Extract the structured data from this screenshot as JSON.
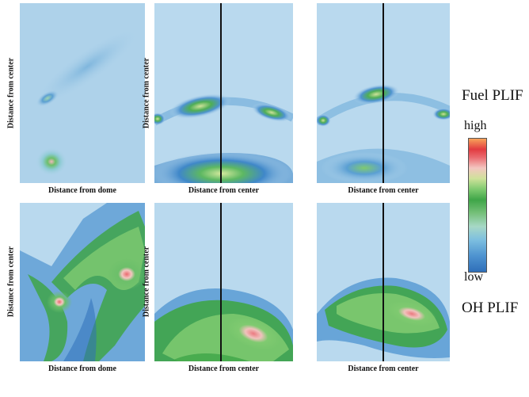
{
  "rows": [
    {
      "title": "Fuel PLIF",
      "panels": [
        {
          "xlabel": "Distance from dome",
          "ylabel": "Distance from center",
          "center_line": false
        },
        {
          "xlabel": "Distance from center",
          "ylabel": "Distance from center",
          "center_line": true
        },
        {
          "xlabel": "Distance from center",
          "ylabel": "",
          "center_line": true
        }
      ]
    },
    {
      "title": "OH PLIF",
      "panels": [
        {
          "xlabel": "Distance from dome",
          "ylabel": "Distance from center",
          "center_line": false
        },
        {
          "xlabel": "Distance from center",
          "ylabel": "Distance from center",
          "center_line": true
        },
        {
          "xlabel": "Distance from center",
          "ylabel": "",
          "center_line": true
        }
      ]
    }
  ],
  "colorbar": {
    "high_label": "high",
    "low_label": "low",
    "colors": [
      "#2f6fb9",
      "#7dbfe0",
      "#3fa548",
      "#cfe29a",
      "#e23b40",
      "#f7a35a"
    ]
  }
}
